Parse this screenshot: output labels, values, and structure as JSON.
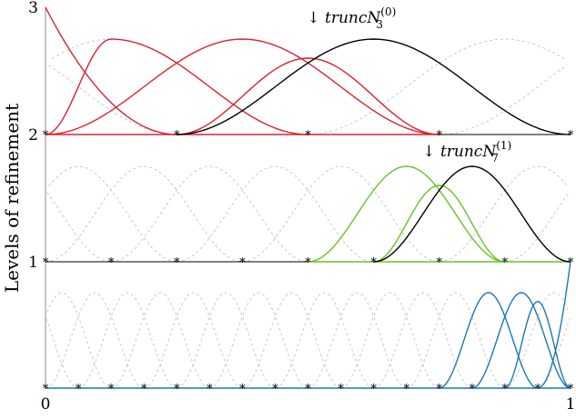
{
  "chart_data": {
    "type": "line",
    "ylabel": "Levels of refinement",
    "xlim": [
      0,
      1
    ],
    "ylim": [
      0,
      3
    ],
    "yticks": [
      "3",
      "2",
      "1"
    ],
    "xticks": [
      "0",
      "1"
    ],
    "grid": false,
    "colors": {
      "level0": "#d9232e",
      "level1": "#6cc12a",
      "level2": "#1f77b4",
      "truncated": "#000000",
      "ghost": "#c8c8c8",
      "axis": "#8c8c8c"
    },
    "levels": [
      {
        "base": 2,
        "knots_marked": [
          0,
          0.25,
          0.5,
          0.75,
          1
        ],
        "curve_height": 0.75,
        "highlighted_functions": [
          {
            "color": "level0",
            "knots": [
              0,
              0,
              0,
              0.25
            ],
            "peak": 1.0
          },
          {
            "color": "level0",
            "knots": [
              0,
              0,
              0.25,
              0.5
            ],
            "peak": 0.75
          },
          {
            "color": "level0",
            "knots": [
              0,
              0.25,
              0.5,
              0.75
            ],
            "peak": 0.75
          },
          {
            "color": "level0",
            "knots": [
              0.25,
              0.5,
              0.75
            ],
            "peak": 0.6
          },
          {
            "color": "truncated",
            "knots": [
              0.25,
              0.5,
              0.75,
              1
            ],
            "peak": 0.75
          }
        ],
        "red_baseline": [
          0.25,
          0.75
        ]
      },
      {
        "base": 1,
        "knots_marked": [
          0,
          0.125,
          0.25,
          0.375,
          0.5,
          0.625,
          0.75,
          0.875,
          1
        ],
        "curve_height": 0.75,
        "highlighted_functions": [
          {
            "color": "level1",
            "knots": [
              0.5,
              0.625,
              0.75,
              0.875
            ],
            "peak": 0.75
          },
          {
            "color": "level1",
            "knots": [
              0.625,
              0.75,
              0.875
            ],
            "peak": 0.6
          },
          {
            "color": "truncated",
            "knots": [
              0.625,
              0.75,
              0.875,
              1
            ],
            "peak": 0.75
          }
        ],
        "green_baseline": [
          0.5,
          1
        ]
      },
      {
        "base": 0,
        "knots_marked": [
          0,
          0.0625,
          0.125,
          0.1875,
          0.25,
          0.3125,
          0.375,
          0.4375,
          0.5,
          0.5625,
          0.625,
          0.6875,
          0.75,
          0.8125,
          0.875,
          0.9375,
          1
        ],
        "curve_height": 0.75,
        "highlighted_functions": [
          {
            "color": "level2",
            "knots": [
              0.75,
              0.8125,
              0.875,
              0.9375
            ],
            "peak": 0.75
          },
          {
            "color": "level2",
            "knots": [
              0.8125,
              0.875,
              0.9375,
              1
            ],
            "peak": 0.75
          },
          {
            "color": "level2",
            "knots": [
              0.875,
              0.9375,
              1
            ],
            "peak": 0.68
          },
          {
            "color": "level2",
            "knots": [
              0.9375,
              1
            ],
            "peak": 1.0
          }
        ]
      }
    ],
    "annotations": [
      {
        "arrow": "↓",
        "text": "truncN",
        "sub": "3",
        "sup": "(0)",
        "x": 0.55,
        "y": 2.85
      },
      {
        "arrow": "↓",
        "text": "truncN",
        "sub": "7",
        "sup": "(1)",
        "x": 0.77,
        "y": 1.8
      }
    ]
  }
}
